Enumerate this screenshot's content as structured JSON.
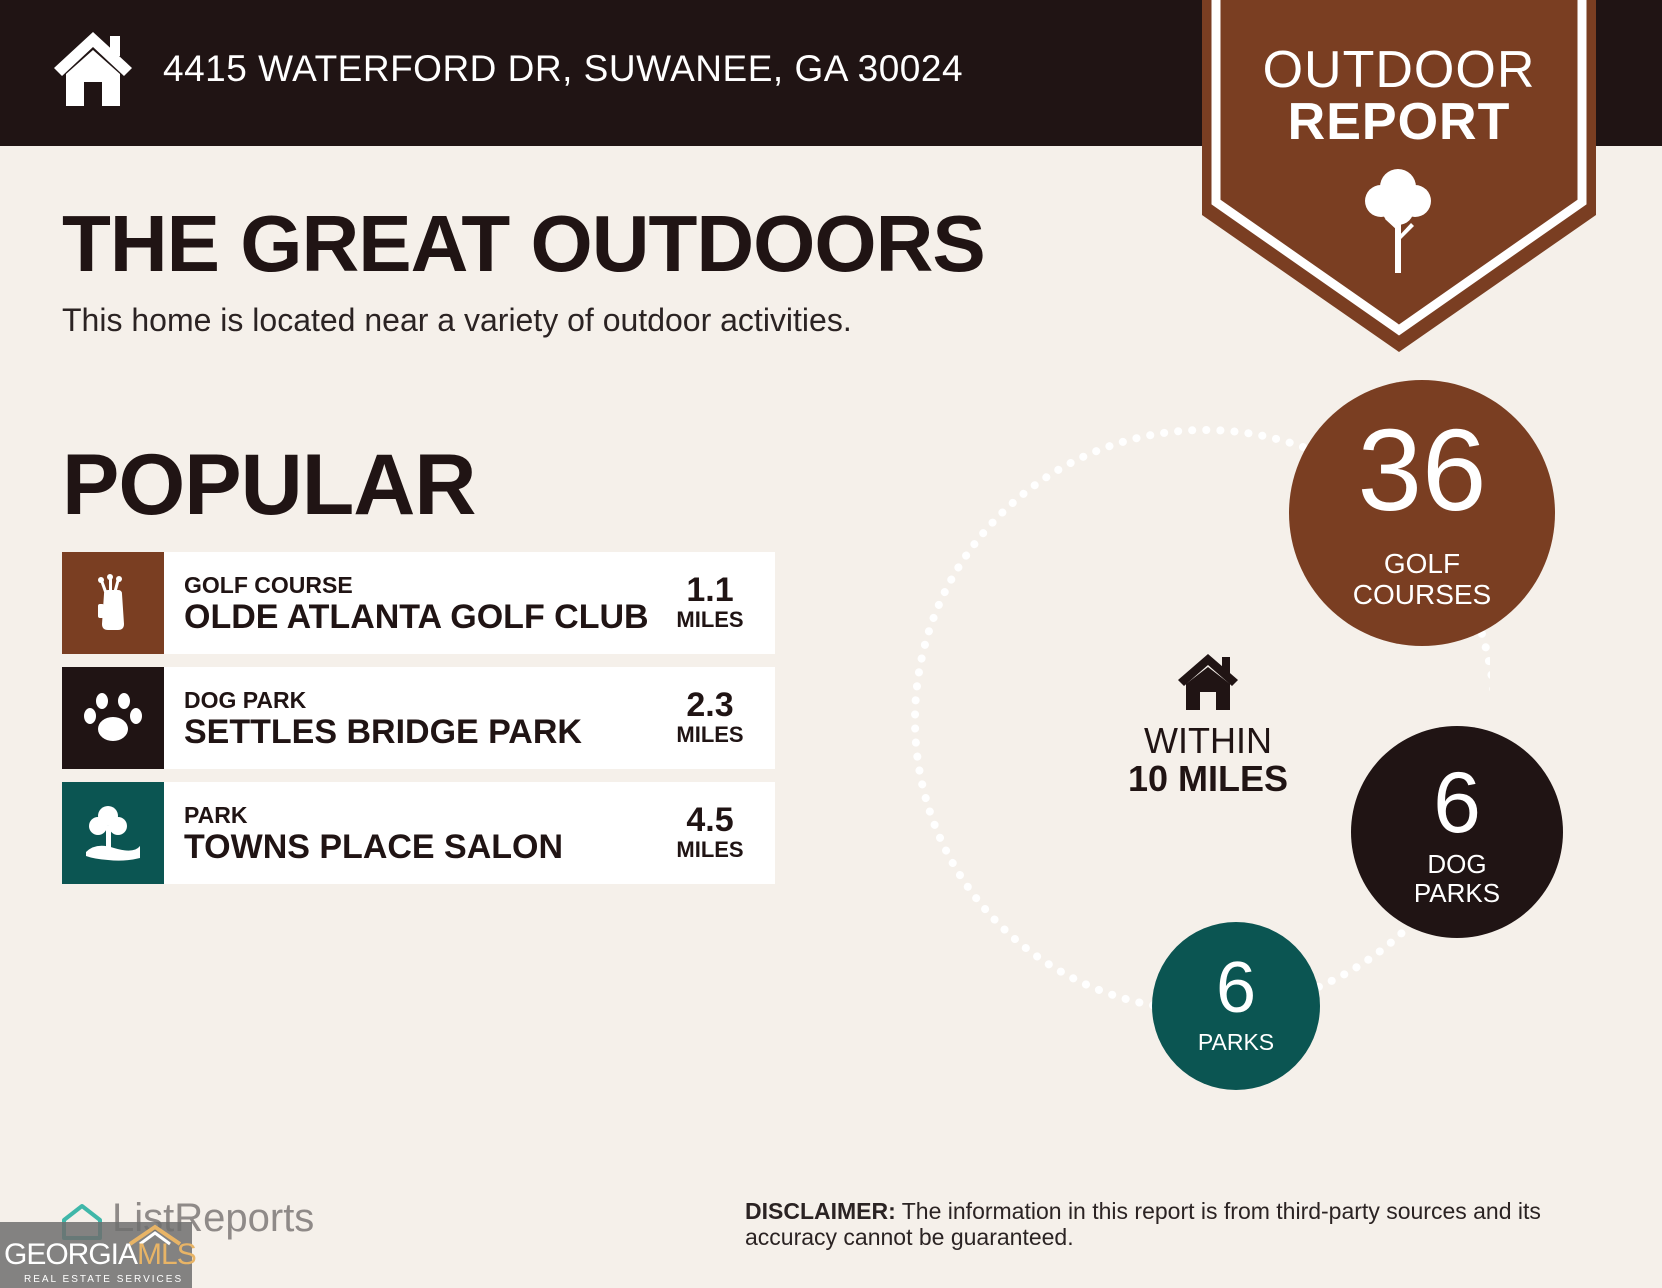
{
  "header": {
    "address": "4415 WATERFORD DR, SUWANEE, GA 30024",
    "icon": "house-icon"
  },
  "badge": {
    "line1": "OUTDOOR",
    "line2": "REPORT",
    "icon": "tree-icon",
    "color": "#7a3e22"
  },
  "main": {
    "title": "THE GREAT OUTDOORS",
    "subtitle": "This home is located near a variety of outdoor activities."
  },
  "popular": {
    "title": "POPULAR",
    "items": [
      {
        "category": "GOLF COURSE",
        "name": "OLDE ATLANTA GOLF CLUB",
        "distance": "1.1",
        "unit": "MILES",
        "icon": "golf-bag-icon",
        "color": "#7a3e22"
      },
      {
        "category": "DOG PARK",
        "name": "SETTLES BRIDGE PARK",
        "distance": "2.3",
        "unit": "MILES",
        "icon": "paw-icon",
        "color": "#201414"
      },
      {
        "category": "PARK",
        "name": "TOWNS PLACE SALON",
        "distance": "4.5",
        "unit": "MILES",
        "icon": "park-tree-icon",
        "color": "#0b5552"
      }
    ]
  },
  "summary": {
    "within_line1": "WITHIN",
    "within_line2": "10 MILES",
    "golf": {
      "count": "36",
      "label1": "GOLF",
      "label2": "COURSES",
      "color": "#7a3e22"
    },
    "dog": {
      "count": "6",
      "label1": "DOG",
      "label2": "PARKS",
      "color": "#201414"
    },
    "park": {
      "count": "6",
      "label1": "PARKS",
      "color": "#0b5552"
    }
  },
  "footer": {
    "brand": "ListReports",
    "gmls_main": "GEORGIA",
    "gmls_accent": "MLS",
    "gmls_sub": "REAL ESTATE SERVICES",
    "disclaimer_label": "DISCLAIMER:",
    "disclaimer_text": " The information in this report is from third-party sources and its accuracy cannot be guaranteed."
  }
}
